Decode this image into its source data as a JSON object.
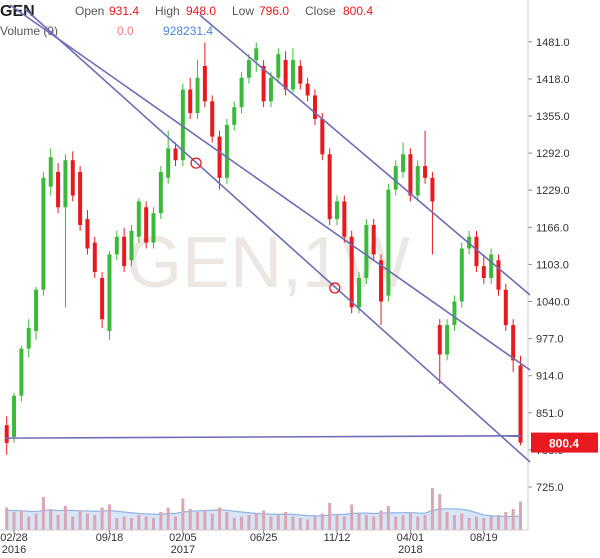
{
  "header": {
    "symbol": "GEN",
    "open_label": "Open",
    "open": "931.4",
    "high_label": "High",
    "high": "948.0",
    "low_label": "Low",
    "low": "796.0",
    "close_label": "Close",
    "close": "800.4",
    "volume_label": "Volume (9)",
    "volume_value": "0.0"
  },
  "chart_data": {
    "type": "candlestick",
    "watermark": "GEN,1W",
    "categories": [
      null,
      "02/28",
      null,
      null,
      null,
      null,
      null,
      null,
      null,
      null,
      null,
      null,
      null,
      null,
      "09/18",
      null,
      null,
      null,
      null,
      null,
      null,
      null,
      null,
      null,
      "02/05",
      null,
      null,
      null,
      null,
      null,
      null,
      null,
      null,
      null,
      null,
      "06/25",
      null,
      null,
      null,
      null,
      null,
      null,
      null,
      null,
      null,
      "11/12",
      null,
      null,
      null,
      null,
      null,
      null,
      null,
      null,
      null,
      "04/01",
      null,
      null,
      null,
      null,
      null,
      null,
      null,
      null,
      null,
      "08/19",
      null,
      null,
      null,
      null,
      null
    ],
    "category_years": [
      null,
      "2016",
      null,
      null,
      null,
      null,
      null,
      null,
      null,
      null,
      null,
      null,
      null,
      null,
      null,
      null,
      null,
      null,
      null,
      null,
      null,
      null,
      null,
      null,
      "2017",
      null,
      null,
      null,
      null,
      null,
      null,
      null,
      null,
      null,
      null,
      null,
      null,
      null,
      null,
      null,
      null,
      null,
      null,
      null,
      null,
      null,
      null,
      null,
      null,
      null,
      null,
      null,
      null,
      null,
      null,
      "2018",
      null,
      null,
      null,
      null,
      null,
      null,
      null,
      null,
      null,
      null,
      null,
      null,
      null,
      null,
      null
    ],
    "open": [
      830,
      810,
      880,
      960,
      990,
      1060,
      1235,
      1260,
      1200,
      1280,
      1260,
      1180,
      1140,
      1080,
      990,
      1120,
      1150,
      1110,
      1150,
      1200,
      1140,
      1190,
      1250,
      1300,
      1280,
      1400,
      1360,
      1440,
      1380,
      1320,
      1250,
      1340,
      1370,
      1420,
      1450,
      1440,
      1380,
      1420,
      1450,
      1400,
      1440,
      1410,
      1390,
      1350,
      1290,
      1180,
      1210,
      1150,
      1030,
      1080,
      1170,
      1110,
      1050,
      1230,
      1260,
      1290,
      1220,
      1270,
      1250,
      1000,
      950,
      1000,
      1040,
      1130,
      1150,
      1100,
      1080,
      1110,
      1060,
      1000,
      931.4
    ],
    "high": [
      845,
      885,
      965,
      1010,
      1065,
      1260,
      1300,
      1275,
      1290,
      1295,
      1270,
      1195,
      1150,
      1090,
      1125,
      1160,
      1165,
      1170,
      1215,
      1210,
      1200,
      1270,
      1330,
      1310,
      1410,
      1420,
      1450,
      1480,
      1390,
      1330,
      1350,
      1380,
      1430,
      1460,
      1480,
      1450,
      1430,
      1470,
      1465,
      1470,
      1450,
      1420,
      1400,
      1360,
      1300,
      1220,
      1220,
      1160,
      1090,
      1180,
      1180,
      1120,
      1240,
      1280,
      1310,
      1300,
      1280,
      1330,
      1260,
      1010,
      1010,
      1050,
      1140,
      1160,
      1160,
      1120,
      1130,
      1120,
      1070,
      1010,
      948
    ],
    "low": [
      780,
      800,
      870,
      945,
      975,
      1050,
      1220,
      1190,
      1030,
      1210,
      1160,
      1120,
      1080,
      995,
      975,
      1110,
      1090,
      1100,
      1140,
      1130,
      1130,
      1180,
      1240,
      1270,
      1270,
      1350,
      1350,
      1370,
      1310,
      1230,
      1240,
      1330,
      1360,
      1410,
      1430,
      1370,
      1370,
      1410,
      1390,
      1395,
      1400,
      1380,
      1340,
      1280,
      1170,
      1170,
      1140,
      1020,
      1020,
      1070,
      1110,
      1000,
      1040,
      1220,
      1250,
      1210,
      1210,
      1240,
      1120,
      900,
      940,
      990,
      1030,
      1120,
      1090,
      1070,
      1070,
      1050,
      990,
      920,
      796
    ],
    "close": [
      800,
      880,
      960,
      995,
      1060,
      1250,
      1285,
      1200,
      1280,
      1220,
      1170,
      1130,
      1090,
      1010,
      1120,
      1150,
      1100,
      1160,
      1210,
      1140,
      1190,
      1260,
      1300,
      1280,
      1400,
      1360,
      1420,
      1380,
      1320,
      1250,
      1340,
      1370,
      1420,
      1450,
      1470,
      1380,
      1420,
      1460,
      1400,
      1450,
      1410,
      1390,
      1350,
      1290,
      1180,
      1210,
      1150,
      1030,
      1080,
      1170,
      1120,
      1040,
      1230,
      1270,
      1290,
      1220,
      1270,
      1250,
      1210,
      950,
      1000,
      1040,
      1130,
      1150,
      1100,
      1080,
      1120,
      1060,
      1000,
      940,
      800.4
    ],
    "last_price_label": "800.4",
    "volume": [
      1500000,
      1200000,
      1300000,
      900000,
      1100000,
      2200000,
      1400000,
      1000000,
      1600000,
      900000,
      1300000,
      1100000,
      1000000,
      1500000,
      1700000,
      800000,
      900000,
      800000,
      1000000,
      900000,
      800000,
      1200000,
      1500000,
      900000,
      2100000,
      1400000,
      1200000,
      1300000,
      1100000,
      1500000,
      1200000,
      800000,
      900000,
      1000000,
      1100000,
      1300000,
      900000,
      1000000,
      1200000,
      900000,
      800000,
      700000,
      900000,
      1100000,
      1800000,
      1000000,
      900000,
      1700000,
      1100000,
      1000000,
      900000,
      1300000,
      1600000,
      900000,
      1000000,
      1200000,
      900000,
      1000000,
      2800000,
      2400000,
      1200000,
      1000000,
      1100000,
      800000,
      900000,
      800000,
      900000,
      1000000,
      1200000,
      1400000,
      1900000
    ],
    "volume_ma": [
      1300000,
      1300000,
      1280000,
      1250000,
      1230000,
      1300000,
      1330000,
      1300000,
      1320000,
      1300000,
      1280000,
      1270000,
      1250000,
      1260000,
      1300000,
      1250000,
      1200000,
      1150000,
      1100000,
      1080000,
      1050000,
      1050000,
      1100000,
      1100000,
      1200000,
      1250000,
      1270000,
      1300000,
      1310000,
      1350000,
      1320000,
      1250000,
      1200000,
      1150000,
      1100000,
      1080000,
      1050000,
      1050000,
      1060000,
      1040000,
      1000000,
      960000,
      940000,
      950000,
      1000000,
      1030000,
      1040000,
      1100000,
      1120000,
      1130000,
      1100000,
      1120000,
      1150000,
      1140000,
      1150000,
      1160000,
      1130000,
      1120000,
      1300000,
      1400000,
      1420000,
      1400000,
      1380000,
      1300000,
      1150000,
      1000000,
      950000,
      920000,
      900000,
      910000,
      928231.4
    ],
    "ylim": [
      652,
      1552
    ],
    "yticks": [
      {
        "value": 725,
        "label": "725.0"
      },
      {
        "value": 788,
        "label": "788.0"
      },
      {
        "value": 851,
        "label": "851.0"
      },
      {
        "value": 914,
        "label": "914.0"
      },
      {
        "value": 977,
        "label": "977.0"
      },
      {
        "value": 1040,
        "label": "1040.0"
      },
      {
        "value": 1103,
        "label": "1103.0"
      },
      {
        "value": 1166,
        "label": "1166.0"
      },
      {
        "value": 1229,
        "label": "1229.0"
      },
      {
        "value": 1292,
        "label": "1292.0"
      },
      {
        "value": 1355,
        "label": "1355.0"
      },
      {
        "value": 1418,
        "label": "1418.0"
      },
      {
        "value": 1481,
        "label": "1481.0"
      }
    ],
    "vlim": [
      0,
      4000000
    ],
    "grid": false,
    "up_color": "#3cb93c",
    "down_color": "#e8191f",
    "trend_color": "#6d6db8",
    "volume_color": "#d9a6b4",
    "volume_ma_color": "#8fb4e6",
    "trend_lines": [
      {
        "x": [
          0.45,
          71.3
        ],
        "y": [
          1543.5,
          923.7
        ]
      },
      {
        "x": [
          2.5,
          71.3
        ],
        "y": [
          1536.7,
          767.5
        ]
      },
      {
        "x": [
          26.3,
          71.3
        ],
        "y": [
          1526.5,
          1051
        ]
      },
      {
        "x": [
          -0.2,
          70
        ],
        "y": [
          808,
          812
        ]
      }
    ],
    "markers": [
      {
        "x": 25.8,
        "y": 1275
      },
      {
        "x": 44.7,
        "y": 1063
      }
    ]
  }
}
